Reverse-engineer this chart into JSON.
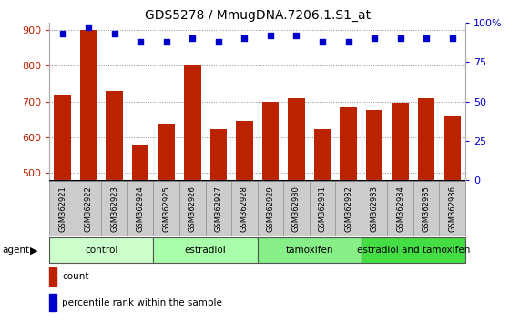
{
  "title": "GDS5278 / MmugDNA.7206.1.S1_at",
  "categories": [
    "GSM362921",
    "GSM362922",
    "GSM362923",
    "GSM362924",
    "GSM362925",
    "GSM362926",
    "GSM362927",
    "GSM362928",
    "GSM362929",
    "GSM362930",
    "GSM362931",
    "GSM362932",
    "GSM362933",
    "GSM362934",
    "GSM362935",
    "GSM362936"
  ],
  "bar_values": [
    720,
    900,
    730,
    580,
    637,
    800,
    622,
    645,
    700,
    708,
    622,
    683,
    677,
    695,
    708,
    660
  ],
  "percentile_values": [
    93,
    97,
    93,
    88,
    88,
    90,
    88,
    90,
    92,
    92,
    88,
    88,
    90,
    90,
    90,
    90
  ],
  "bar_color": "#bb2200",
  "dot_color": "#0000cc",
  "ylim_left": [
    480,
    920
  ],
  "ylim_right": [
    0,
    100
  ],
  "yticks_left": [
    500,
    600,
    700,
    800,
    900
  ],
  "yticks_right": [
    0,
    25,
    50,
    75,
    100
  ],
  "groups": [
    {
      "label": "control",
      "start": 0,
      "end": 4
    },
    {
      "label": "estradiol",
      "start": 4,
      "end": 8
    },
    {
      "label": "tamoxifen",
      "start": 8,
      "end": 12
    },
    {
      "label": "estradiol and tamoxifen",
      "start": 12,
      "end": 16
    }
  ],
  "group_colors": [
    "#ccffcc",
    "#aaffaa",
    "#88ee88",
    "#44dd44"
  ],
  "agent_label": "agent",
  "grid_color": "#888888",
  "bar_width": 0.65,
  "title_fontsize": 10,
  "tick_fontsize": 8,
  "sample_box_color": "#cccccc",
  "sample_box_edge": "#999999",
  "bg_color": "#ffffff"
}
